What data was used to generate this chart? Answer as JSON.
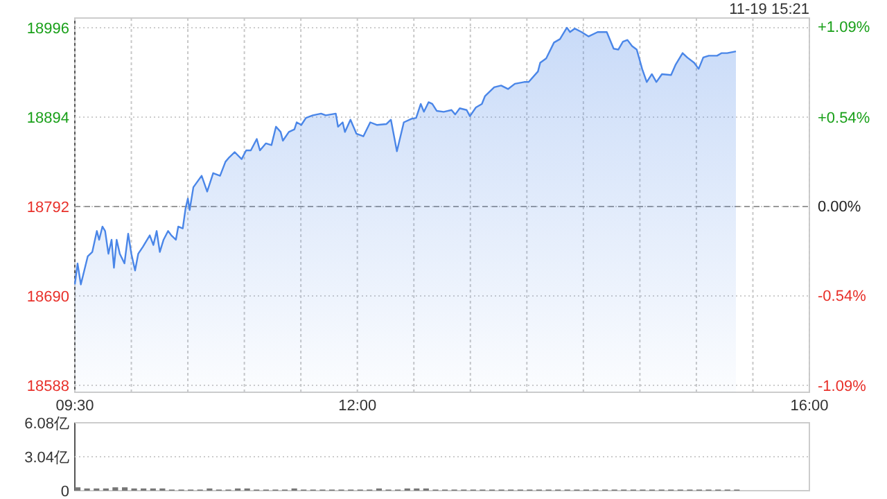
{
  "chart_data": [
    {
      "type": "area",
      "annotations": [
        "11-19 15:21"
      ],
      "xlim": [
        9.5,
        16
      ],
      "ylim": [
        18580,
        19007
      ],
      "y2lim": [
        -1.13,
        1.14
      ],
      "xticks": [
        {
          "value": 9.5,
          "label": "09:30"
        },
        {
          "value": 10,
          "label": null
        },
        {
          "value": 10.5,
          "label": null
        },
        {
          "value": 11,
          "label": null
        },
        {
          "value": 11.5,
          "label": null
        },
        {
          "value": 12,
          "label": "12:00"
        },
        {
          "value": 12.5,
          "label": null
        },
        {
          "value": 13,
          "label": null
        },
        {
          "value": 13.5,
          "label": null
        },
        {
          "value": 14,
          "label": null
        },
        {
          "value": 14.5,
          "label": null
        },
        {
          "value": 15,
          "label": null
        },
        {
          "value": 15.5,
          "label": null
        },
        {
          "value": 16,
          "label": "16:00"
        }
      ],
      "yticks": [
        18588,
        18690,
        18792,
        18894,
        18996
      ],
      "y2ticks": [
        {
          "value": -1.09,
          "label": "-1.09%"
        },
        {
          "value": -0.54,
          "label": "-0.54%"
        },
        {
          "value": 0,
          "label": "0.00%"
        },
        {
          "value": 0.54,
          "label": "+0.54%"
        },
        {
          "value": 1.09,
          "label": "+1.09%"
        }
      ],
      "grid": true,
      "ref_lines": [
        {
          "axis": "y",
          "value": 18792,
          "line_style": "dashed"
        }
      ],
      "series": [
        {
          "color": "#4a86e8",
          "x": [
            9.5,
            9.524,
            9.553,
            9.614,
            9.654,
            9.695,
            9.715,
            9.744,
            9.768,
            9.797,
            9.825,
            9.846,
            9.87,
            9.898,
            9.939,
            9.972,
            10,
            10.033,
            10.061,
            10.102,
            10.163,
            10.195,
            10.224,
            10.252,
            10.285,
            10.325,
            10.354,
            10.394,
            10.415,
            10.455,
            10.48,
            10.5,
            10.516,
            10.549,
            10.622,
            10.671,
            10.724,
            10.785,
            10.833,
            10.866,
            10.915,
            10.976,
            11.016,
            11.057,
            11.11,
            11.138,
            11.191,
            11.24,
            11.28,
            11.321,
            11.341,
            11.394,
            11.443,
            11.463,
            11.504,
            11.545,
            11.606,
            11.679,
            11.72,
            11.809,
            11.829,
            11.87,
            11.89,
            11.939,
            11.992,
            12.053,
            12.114,
            12.175,
            12.256,
            12.297,
            12.35,
            12.411,
            12.48,
            12.52,
            12.561,
            12.589,
            12.63,
            12.663,
            12.703,
            12.764,
            12.833,
            12.866,
            12.906,
            12.967,
            12.996,
            13.049,
            13.102,
            13.13,
            13.171,
            13.211,
            13.272,
            13.333,
            13.394,
            13.476,
            13.516,
            13.598,
            13.618,
            13.671,
            13.74,
            13.793,
            13.854,
            13.882,
            13.923,
            13.984,
            14.045,
            14.126,
            14.207,
            14.268,
            14.309,
            14.35,
            14.39,
            14.431,
            14.472,
            14.492,
            14.52,
            14.561,
            14.606,
            14.646,
            14.695,
            14.776,
            14.817,
            14.878,
            14.919,
            14.98,
            15.02,
            15.061,
            15.11,
            15.183,
            15.224,
            15.272,
            15.35
          ],
          "values": [
            18703,
            18727,
            18703,
            18735,
            18740,
            18764,
            18754,
            18769,
            18764,
            18738,
            18754,
            18722,
            18754,
            18738,
            18727,
            18761,
            18738,
            18719,
            18738,
            18746,
            18759,
            18748,
            18764,
            18740,
            18754,
            18764,
            18759,
            18754,
            18769,
            18767,
            18790,
            18801,
            18788,
            18814,
            18827,
            18809,
            18830,
            18827,
            18843,
            18848,
            18854,
            18846,
            18856,
            18856,
            18869,
            18856,
            18864,
            18862,
            18883,
            18877,
            18867,
            18877,
            18880,
            18888,
            18885,
            18893,
            18896,
            18898,
            18896,
            18898,
            18883,
            18888,
            18877,
            18891,
            18875,
            18872,
            18888,
            18885,
            18886,
            18891,
            18855,
            18888,
            18892,
            18893,
            18909,
            18900,
            18911,
            18909,
            18901,
            18900,
            18902,
            18897,
            18904,
            18902,
            18895,
            18905,
            18909,
            18918,
            18923,
            18928,
            18930,
            18926,
            18932,
            18934,
            18934,
            18946,
            18956,
            18961,
            18979,
            18983,
            18996,
            18991,
            18995,
            18991,
            18986,
            18991,
            18991,
            18972,
            18971,
            18980,
            18982,
            18975,
            18971,
            18962,
            18949,
            18934,
            18943,
            18934,
            18943,
            18942,
            18954,
            18967,
            18962,
            18956,
            18949,
            18962,
            18964,
            18964,
            18967,
            18967,
            18969
          ]
        }
      ]
    },
    {
      "type": "bar",
      "xlim": [
        9.5,
        16
      ],
      "ylim": [
        0,
        6.08
      ],
      "yticks": [
        0,
        {
          "value": 3.04,
          "label": "3.04亿"
        },
        {
          "value": 6.08,
          "label": "6.08亿"
        }
      ],
      "grid": "y",
      "tick_labels": "y",
      "series": [
        {
          "color": "#777777",
          "x": [
            9.5,
            9.583,
            9.667,
            9.75,
            9.833,
            9.917,
            10,
            10.083,
            10.167,
            10.25,
            10.333,
            10.417,
            10.5,
            10.583,
            10.667,
            10.75,
            10.833,
            10.917,
            11,
            11.083,
            11.167,
            11.25,
            11.333,
            11.417,
            11.5,
            11.583,
            11.667,
            11.75,
            11.833,
            11.917,
            12,
            12.083,
            12.167,
            12.25,
            12.333,
            12.417,
            12.5,
            12.583,
            12.667,
            12.75,
            12.833,
            12.917,
            13,
            13.083,
            13.167,
            13.25,
            13.333,
            13.417,
            13.5,
            13.583,
            13.667,
            13.75,
            13.833,
            13.917,
            14,
            14.083,
            14.167,
            14.25,
            14.333,
            14.417,
            14.5,
            14.583,
            14.667,
            14.75,
            14.833,
            14.917,
            15,
            15.083,
            15.167,
            15.25,
            15.333
          ],
          "values": [
            0.3,
            0.2,
            0.2,
            0.2,
            0.3,
            0.3,
            0.2,
            0.2,
            0.2,
            0.2,
            0.1,
            0.1,
            0.1,
            0.1,
            0.2,
            0.1,
            0.1,
            0.2,
            0.2,
            0.1,
            0.1,
            0.1,
            0.1,
            0.2,
            0.1,
            0.1,
            0.1,
            0.1,
            0.1,
            0.1,
            0.1,
            0.1,
            0.2,
            0.1,
            0.1,
            0.2,
            0.2,
            0.2,
            0.1,
            0.1,
            0.1,
            0.1,
            0.1,
            0.1,
            0.1,
            0.1,
            0.1,
            0.1,
            0.1,
            0.1,
            0.1,
            0.1,
            0.1,
            0.1,
            0.1,
            0.1,
            0.1,
            0.1,
            0.1,
            0.1,
            0.1,
            0.1,
            0.1,
            0.1,
            0.1,
            0.1,
            0.1,
            0.1,
            0.1,
            0.1,
            0.1
          ]
        }
      ]
    }
  ]
}
